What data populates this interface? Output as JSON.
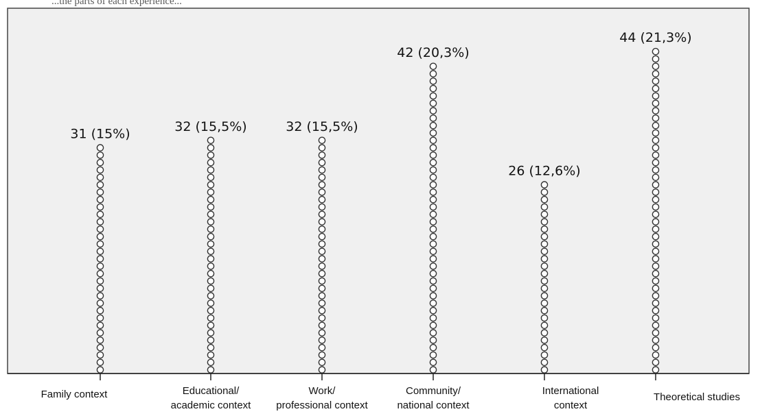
{
  "top_text": "...the parts of each experience...",
  "chart_data": {
    "type": "dot",
    "title": "",
    "xlabel": "",
    "ylabel": "",
    "ylim": [
      0,
      46
    ],
    "grid": false,
    "categories": [
      [
        "Family context"
      ],
      [
        "Educational/",
        "academic context"
      ],
      [
        "Work/",
        "professional context"
      ],
      [
        "Community/",
        "national context"
      ],
      [
        "International",
        "context"
      ],
      [
        "Theoretical studies"
      ]
    ],
    "values": [
      31,
      32,
      32,
      42,
      26,
      44
    ],
    "data_labels": [
      "31 (15%)",
      "32 (15,5%)",
      "32 (15,5%)",
      "42 (20,3%)",
      "26 (12,6%)",
      "44 (21,3%)"
    ],
    "colors": {
      "plot_background": "#f0f0f0",
      "marker_stroke": "#333333",
      "marker_fill": "#ffffff",
      "axis": "#222222"
    }
  }
}
